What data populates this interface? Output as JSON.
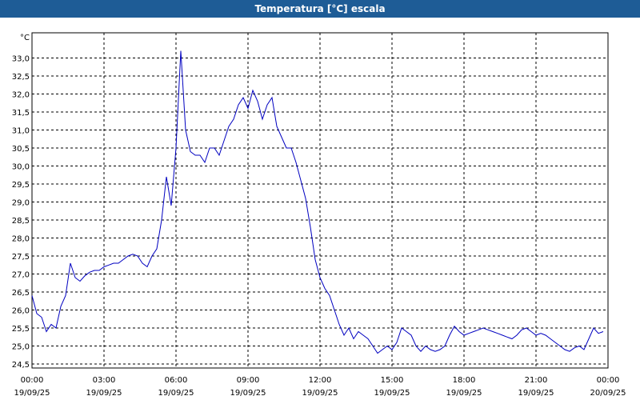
{
  "window": {
    "title": "Temperatura [°C] escala"
  },
  "colors": {
    "title_bar": "#1e5c96",
    "series": "#0000c0",
    "grid": "#000000"
  },
  "chart_data": {
    "type": "line",
    "title": "Temperatura [°C] escala",
    "unit_label": "°C",
    "ylim": [
      24.5,
      33.5
    ],
    "xlim": [
      "19/09/25 00:00",
      "20/09/25 00:00"
    ],
    "y_ticks": [
      "24,5",
      "25,0",
      "25,5",
      "26,0",
      "26,5",
      "27,0",
      "27,5",
      "28,0",
      "28,5",
      "29,0",
      "29,5",
      "30,0",
      "30,5",
      "31,0",
      "31,5",
      "32,0",
      "32,5",
      "33,0"
    ],
    "x_ticks": [
      {
        "time": "00:00",
        "date": "19/09/25"
      },
      {
        "time": "03:00",
        "date": "19/09/25"
      },
      {
        "time": "06:00",
        "date": "19/09/25"
      },
      {
        "time": "09:00",
        "date": "19/09/25"
      },
      {
        "time": "12:00",
        "date": "19/09/25"
      },
      {
        "time": "15:00",
        "date": "19/09/25"
      },
      {
        "time": "18:00",
        "date": "19/09/25"
      },
      {
        "time": "21:00",
        "date": "19/09/25"
      },
      {
        "time": "00:00",
        "date": "20/09/25"
      }
    ],
    "grid": true,
    "series": [
      {
        "x": [
          0,
          0.2,
          0.4,
          0.6,
          0.8,
          1.0,
          1.2,
          1.4,
          1.6,
          1.8,
          2.0,
          2.2,
          2.4,
          2.6,
          2.8,
          3.0,
          3.2,
          3.4,
          3.6,
          3.8,
          4.0,
          4.2,
          4.4,
          4.6,
          4.8,
          5.0,
          5.2,
          5.4,
          5.6,
          5.8,
          6.0,
          6.2,
          6.4,
          6.6,
          6.8,
          7.0,
          7.2,
          7.4,
          7.6,
          7.8,
          8.0,
          8.2,
          8.4,
          8.6,
          8.8,
          9.0,
          9.2,
          9.4,
          9.6,
          9.8,
          10.0,
          10.2,
          10.4,
          10.6,
          10.8,
          11.0,
          11.2,
          11.4,
          11.6,
          11.8,
          12.0,
          12.2,
          12.4,
          12.6,
          12.8,
          13.0,
          13.2,
          13.4,
          13.6,
          13.8,
          14.0,
          14.2,
          14.4,
          14.6,
          14.8,
          15.0,
          15.2,
          15.4,
          15.6,
          15.8,
          16.0,
          16.2,
          16.4,
          16.6,
          16.8,
          17.0,
          17.2,
          17.4,
          17.6,
          17.8,
          18.0,
          18.2,
          18.4,
          18.6,
          18.8,
          19.0,
          19.2,
          19.4,
          19.6,
          19.8,
          20.0,
          20.2,
          20.4,
          20.6,
          20.8,
          21.0,
          21.2,
          21.4,
          21.6,
          21.8,
          22.0,
          22.2,
          22.4,
          22.6,
          22.8,
          23.0,
          23.2,
          23.4,
          23.6,
          23.8
        ],
        "y": [
          26.4,
          25.9,
          25.8,
          25.4,
          25.6,
          25.5,
          26.1,
          26.4,
          27.3,
          26.9,
          26.8,
          26.95,
          27.05,
          27.1,
          27.1,
          27.2,
          27.25,
          27.3,
          27.3,
          27.4,
          27.5,
          27.55,
          27.5,
          27.3,
          27.2,
          27.5,
          27.7,
          28.5,
          29.7,
          28.9,
          30.5,
          33.2,
          31.0,
          30.4,
          30.3,
          30.3,
          30.1,
          30.5,
          30.5,
          30.3,
          30.7,
          31.1,
          31.3,
          31.7,
          31.9,
          31.6,
          32.1,
          31.8,
          31.3,
          31.7,
          31.9,
          31.1,
          30.8,
          30.5,
          30.5,
          30.1,
          29.6,
          29.1,
          28.3,
          27.4,
          26.9,
          26.6,
          26.4,
          26.0,
          25.6,
          25.3,
          25.5,
          25.2,
          25.4,
          25.3,
          25.2,
          25.0,
          24.8,
          24.9,
          25.0,
          24.9,
          25.1,
          25.5,
          25.4,
          25.3,
          25.0,
          24.85,
          25.0,
          24.9,
          24.85,
          24.9,
          25.0,
          25.3,
          25.55,
          25.4,
          25.3,
          25.35,
          25.4,
          25.45,
          25.5,
          25.45,
          25.4,
          25.35,
          25.3,
          25.25,
          25.2,
          25.3,
          25.45,
          25.5,
          25.4,
          25.3,
          25.35,
          25.3,
          25.2,
          25.1,
          25.0,
          24.9,
          24.85,
          24.95,
          25.0,
          24.9,
          25.2,
          25.5,
          25.35,
          25.4
        ]
      }
    ]
  }
}
